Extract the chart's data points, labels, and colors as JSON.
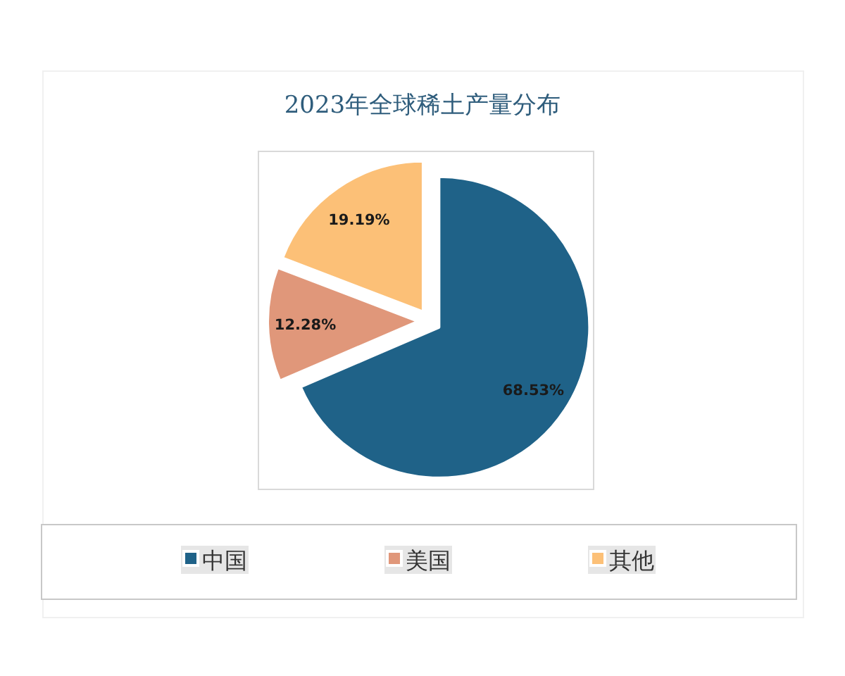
{
  "chart_data": {
    "type": "pie",
    "title": "2023年全球稀土产量分布",
    "categories": [
      "中国",
      "美国",
      "其他"
    ],
    "values": [
      68.53,
      12.28,
      19.19
    ],
    "colors": [
      "#1f6288",
      "#e0977a",
      "#fcc077"
    ],
    "value_labels": [
      "68.53%",
      "12.28%",
      "19.19%"
    ],
    "legend": "bottom"
  }
}
